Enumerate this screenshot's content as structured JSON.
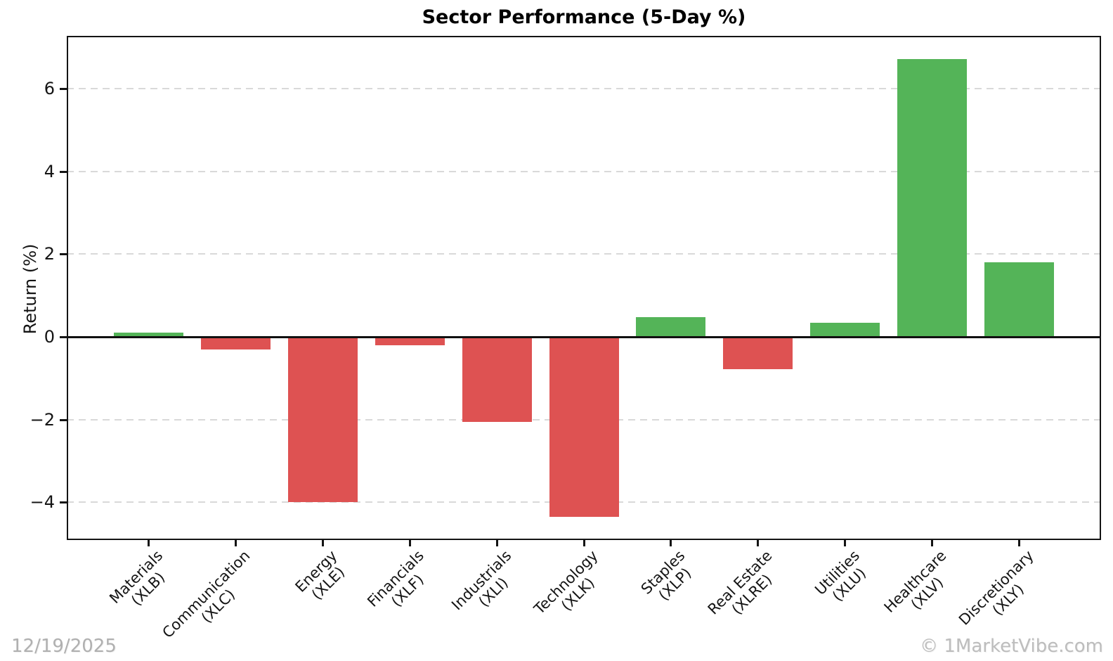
{
  "title": "Sector Performance (5-Day %)",
  "ylabel": "Return (%)",
  "footer": {
    "date": "12/19/2025",
    "copyright": "© 1MarketVibe.com"
  },
  "colors": {
    "positive_bar": "#54b458",
    "negative_bar": "#de5252",
    "gridline": "#d9d9d9",
    "axis": "#141414",
    "watermark": "#b0b0b0"
  },
  "chart_data": {
    "type": "bar",
    "title": "Sector Performance (5-Day %)",
    "xlabel": "",
    "ylabel": "Return (%)",
    "categories": [
      "Materials (XLB)",
      "Communication (XLC)",
      "Energy (XLE)",
      "Financials (XLF)",
      "Industrials (XLI)",
      "Technology (XLK)",
      "Staples (XLP)",
      "Real Estate (XLRE)",
      "Utilities (XLU)",
      "Healthcare (XLV)",
      "Discretionary (XLY)"
    ],
    "values": [
      0.1,
      -0.3,
      -4.0,
      -0.2,
      -2.05,
      -4.35,
      0.47,
      -0.78,
      0.34,
      6.72,
      1.8
    ],
    "bars": [
      {
        "sector": "Materials",
        "ticker": "(XLB)",
        "value": 0.1
      },
      {
        "sector": "Communication",
        "ticker": "(XLC)",
        "value": -0.3
      },
      {
        "sector": "Energy",
        "ticker": "(XLE)",
        "value": -4.0
      },
      {
        "sector": "Financials",
        "ticker": "(XLF)",
        "value": -0.2
      },
      {
        "sector": "Industrials",
        "ticker": "(XLI)",
        "value": -2.05
      },
      {
        "sector": "Technology",
        "ticker": "(XLK)",
        "value": -4.35
      },
      {
        "sector": "Staples",
        "ticker": "(XLP)",
        "value": 0.47
      },
      {
        "sector": "Real Estate",
        "ticker": "(XLRE)",
        "value": -0.78
      },
      {
        "sector": "Utilities",
        "ticker": "(XLU)",
        "value": 0.34
      },
      {
        "sector": "Healthcare",
        "ticker": "(XLV)",
        "value": 6.72
      },
      {
        "sector": "Discretionary",
        "ticker": "(XLY)",
        "value": 1.8
      }
    ],
    "yticks": [
      6,
      4,
      2,
      0,
      -2,
      -4
    ],
    "ytick_labels": [
      "6",
      "4",
      "2",
      "0",
      "−2",
      "−4"
    ],
    "ylim": [
      -4.9,
      7.3
    ],
    "grid": {
      "axis": "y",
      "style": "dashed",
      "zero_line": "solid black"
    },
    "legend": "none",
    "bar_color_rule": "green when value >= 0, red when value < 0"
  }
}
